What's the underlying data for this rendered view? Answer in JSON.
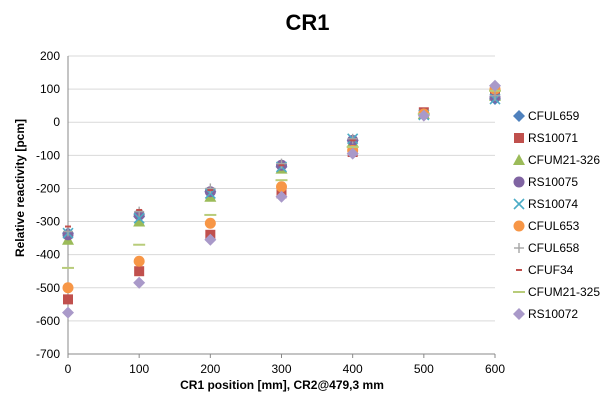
{
  "chart_data": {
    "type": "scatter",
    "title": "CR1",
    "xlabel": "CR1 position [mm], CR2@479,3 mm",
    "ylabel": "Relative reactivity [pcm]",
    "xlim": [
      0,
      600
    ],
    "ylim": [
      -700,
      200
    ],
    "xticks": [
      "0",
      "100",
      "200",
      "300",
      "400",
      "500",
      "600"
    ],
    "yticks": [
      "200",
      "100",
      "0",
      "-100",
      "-200",
      "-300",
      "-400",
      "-500",
      "-600",
      "-700"
    ],
    "grid": true,
    "legend": "right",
    "x": [
      0,
      100,
      200,
      300,
      400,
      500,
      600
    ],
    "series": [
      {
        "name": "CFUL659",
        "marker": "diamond",
        "color": "#4F81BD",
        "values": [
          -335,
          -285,
          -210,
          -135,
          -55,
          25,
          70
        ]
      },
      {
        "name": "RS10071",
        "marker": "square",
        "color": "#C0504D",
        "values": [
          -535,
          -450,
          -340,
          -215,
          -90,
          30,
          95
        ]
      },
      {
        "name": "CFUM21-326",
        "marker": "triangle",
        "color": "#9BBB59",
        "values": [
          -355,
          -300,
          -225,
          -140,
          -60,
          25,
          80
        ]
      },
      {
        "name": "RS10075",
        "marker": "circle",
        "color": "#8064A2",
        "values": [
          -340,
          -280,
          -210,
          -130,
          -55,
          25,
          75
        ]
      },
      {
        "name": "RS10074",
        "marker": "x",
        "color": "#4BACC6",
        "values": [
          -335,
          -290,
          -215,
          -135,
          -50,
          22,
          70
        ]
      },
      {
        "name": "CFUL653",
        "marker": "circle",
        "color": "#F79646",
        "values": [
          -500,
          -420,
          -305,
          -195,
          -85,
          25,
          100
        ]
      },
      {
        "name": "CFUL658",
        "marker": "plus",
        "color": "#A5A5A5",
        "values": [
          -330,
          -270,
          -200,
          -125,
          -50,
          20,
          80
        ]
      },
      {
        "name": "CFUF34",
        "marker": "dash",
        "color": "#C0504D",
        "values": [
          -315,
          -265,
          -205,
          -130,
          -55,
          20,
          105
        ]
      },
      {
        "name": "CFUM21-325",
        "marker": "longdash",
        "color": "#B8CC7A",
        "values": [
          -440,
          -370,
          -280,
          -175,
          -75,
          25,
          95
        ]
      },
      {
        "name": "RS10072",
        "marker": "diamond",
        "color": "#A999C9",
        "values": [
          -575,
          -485,
          -355,
          -225,
          -95,
          20,
          110
        ]
      }
    ]
  }
}
